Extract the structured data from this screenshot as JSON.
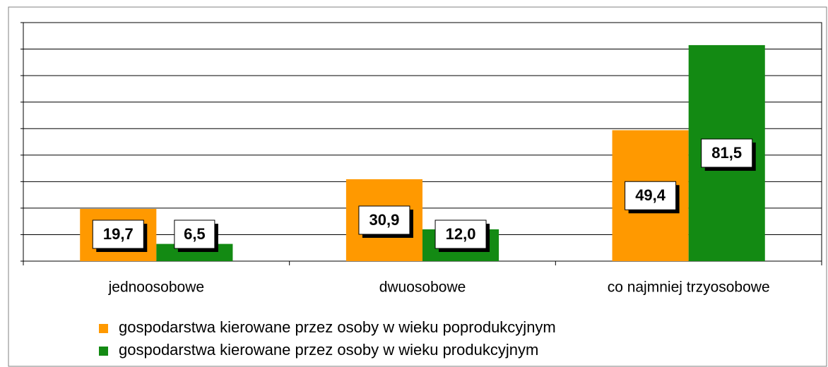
{
  "chart_data": {
    "type": "bar",
    "categories": [
      "jednoosobowe",
      "dwuosobowe",
      "co najmniej trzyosobowe"
    ],
    "series": [
      {
        "name": "gospodarstwa kierowane przez osoby w wieku poprodukcyjnym",
        "color": "#ff9900",
        "values": [
          19.7,
          30.9,
          49.4
        ],
        "value_labels": [
          "19,7",
          "30,9",
          "49,4"
        ]
      },
      {
        "name": "gospodarstwa kierowane przez osoby w wieku produkcyjnym",
        "color": "#138a13",
        "values": [
          6.5,
          12.0,
          81.5
        ],
        "value_labels": [
          "6,5",
          "12,0",
          "81,5"
        ]
      }
    ],
    "ylim": [
      0,
      90
    ],
    "yticks": [
      0,
      10,
      20,
      30,
      40,
      50,
      60,
      70,
      80,
      90
    ],
    "ytick_labels": false,
    "grid": true,
    "legend": "bottom"
  }
}
